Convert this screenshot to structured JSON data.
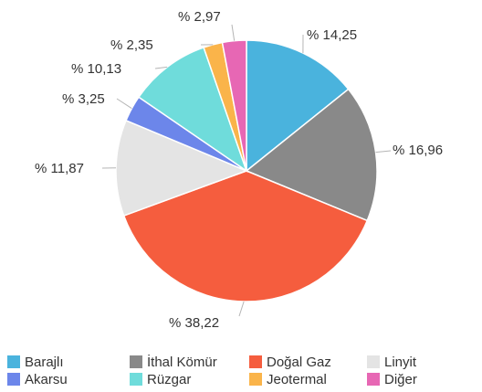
{
  "chart_data": {
    "type": "pie",
    "title": "",
    "slices": [
      {
        "name": "Barajlı",
        "value": 14.25,
        "label": "% 14,25",
        "color": "#4ab3dd"
      },
      {
        "name": "İthal Kömür",
        "value": 16.96,
        "label": "% 16,96",
        "color": "#898989"
      },
      {
        "name": "Doğal Gaz",
        "value": 38.22,
        "label": "% 38,22",
        "color": "#f55d3e"
      },
      {
        "name": "Linyit",
        "value": 11.87,
        "label": "% 11,87",
        "color": "#e4e4e4"
      },
      {
        "name": "Akarsu",
        "value": 3.25,
        "label": "% 3,25",
        "color": "#6c86ea"
      },
      {
        "name": "Rüzgar",
        "value": 10.13,
        "label": "% 10,13",
        "color": "#6fdcdb"
      },
      {
        "name": "Jeotermal",
        "value": 2.35,
        "label": "% 2,35",
        "color": "#fab44a"
      },
      {
        "name": "Diğer",
        "value": 2.97,
        "label": "% 2,97",
        "color": "#e767b4"
      }
    ],
    "legend_position": "bottom"
  }
}
